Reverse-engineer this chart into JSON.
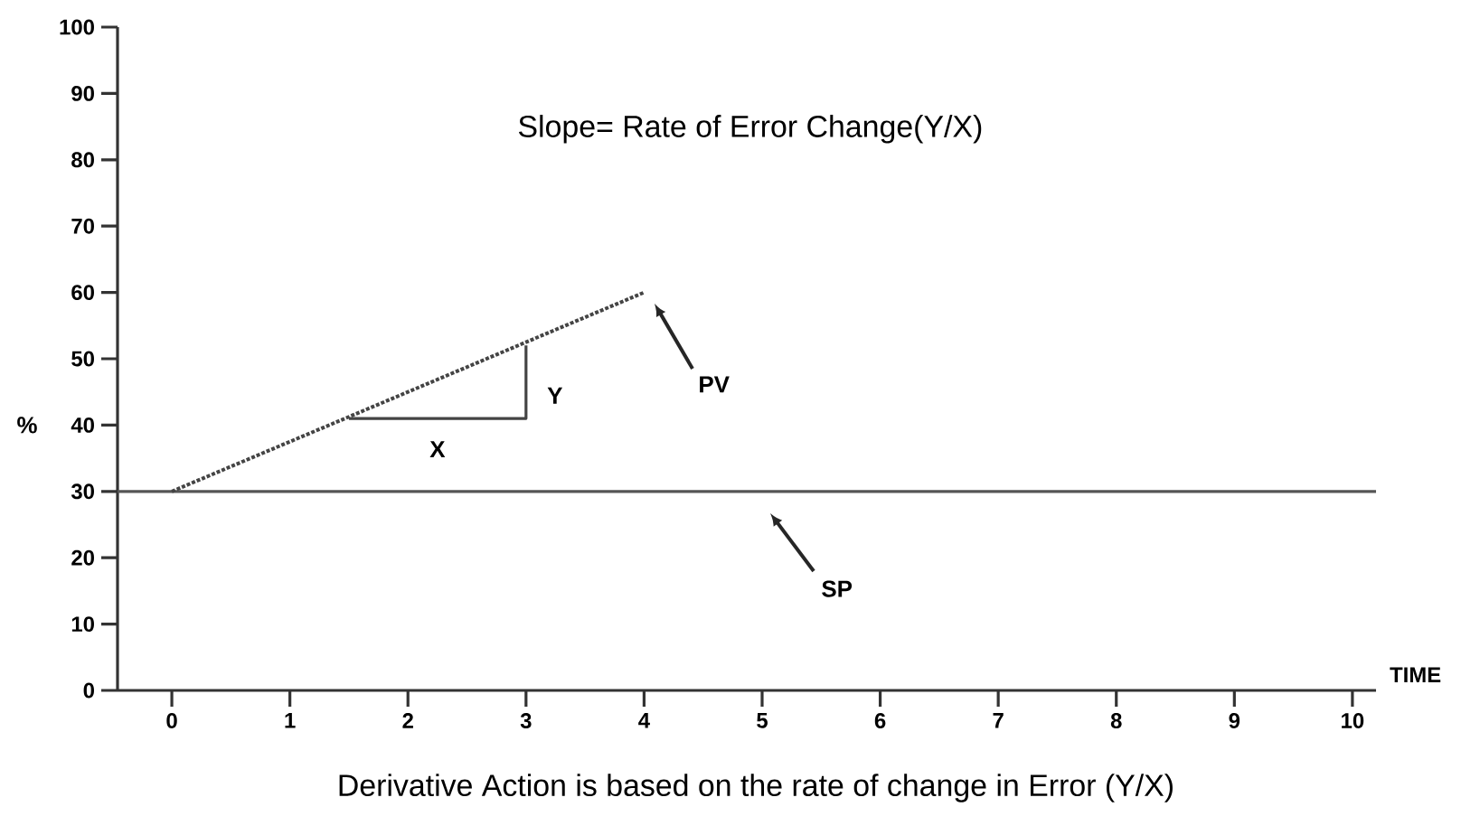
{
  "chart_data": {
    "type": "line",
    "title": "Slope= Rate of Error Change(Y/X)",
    "xlabel": "TIME",
    "ylabel": "%",
    "xlim": [
      -0.46,
      10.2
    ],
    "xticks": [
      0,
      1,
      2,
      3,
      4,
      5,
      6,
      7,
      8,
      9,
      10
    ],
    "ylim": [
      0,
      100
    ],
    "yticks": [
      0,
      10,
      20,
      30,
      40,
      50,
      60,
      70,
      80,
      90,
      100
    ],
    "marker": "none",
    "series": [
      {
        "color": "#444444",
        "line_style": "dotted",
        "x": [
          0,
          4
        ],
        "values": [
          30,
          60
        ]
      },
      {
        "color": "#444444",
        "line_style": "solid",
        "x": [
          1.5,
          3,
          3
        ],
        "values": [
          41,
          41,
          52
        ]
      }
    ],
    "ref_lines": [
      {
        "axis": "y",
        "value": 30,
        "color": "#555555"
      }
    ],
    "annotations": [
      "PV",
      "SP",
      {
        "text": "X",
        "x": 2.25,
        "y": 41
      },
      {
        "text": "Y",
        "x": 3,
        "y": 46.9
      },
      "Derivative Action is based on the rate of change in Error (Y/X)"
    ]
  }
}
